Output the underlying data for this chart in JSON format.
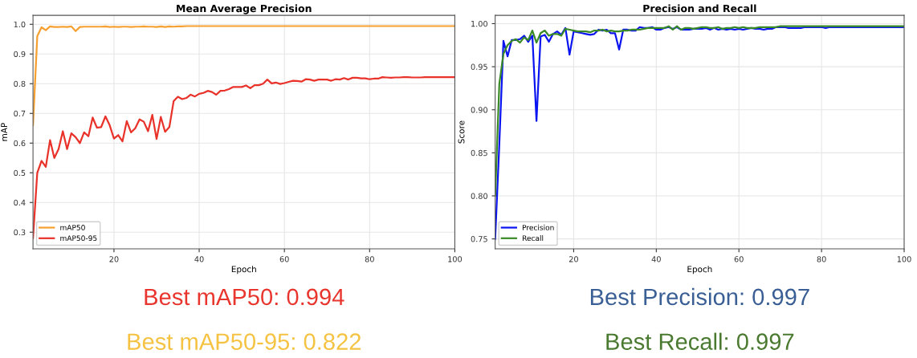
{
  "chart_data": [
    {
      "type": "line",
      "title": "Mean Average Precision",
      "xlabel": "Epoch",
      "ylabel": "mAP",
      "x": [
        1,
        2,
        3,
        4,
        5,
        6,
        7,
        8,
        9,
        10,
        11,
        12,
        13,
        14,
        15,
        16,
        17,
        18,
        19,
        20,
        21,
        22,
        23,
        24,
        25,
        26,
        27,
        28,
        29,
        30,
        31,
        32,
        33,
        34,
        35,
        36,
        37,
        38,
        39,
        40,
        41,
        42,
        43,
        44,
        45,
        46,
        47,
        48,
        49,
        50,
        51,
        52,
        53,
        54,
        55,
        56,
        57,
        58,
        59,
        60,
        61,
        62,
        63,
        64,
        65,
        66,
        67,
        68,
        69,
        70,
        71,
        72,
        73,
        74,
        75,
        76,
        77,
        78,
        79,
        80,
        81,
        82,
        83,
        84,
        85,
        86,
        87,
        88,
        89,
        90,
        91,
        92,
        93,
        94,
        95,
        96,
        97,
        98,
        99,
        100
      ],
      "series": [
        {
          "name": "mAP50",
          "color": "#f5a030",
          "values": [
            0.66,
            0.96,
            0.99,
            0.98,
            0.993,
            0.991,
            0.991,
            0.992,
            0.991,
            0.993,
            0.977,
            0.991,
            0.992,
            0.992,
            0.992,
            0.992,
            0.992,
            0.993,
            0.991,
            0.992,
            0.991,
            0.992,
            0.992,
            0.991,
            0.992,
            0.992,
            0.993,
            0.992,
            0.992,
            0.991,
            0.993,
            0.991,
            0.993,
            0.992,
            0.993,
            0.993,
            0.994,
            0.994,
            0.994,
            0.994,
            0.994,
            0.994,
            0.994,
            0.994,
            0.994,
            0.994,
            0.994,
            0.994,
            0.994,
            0.994,
            0.994,
            0.994,
            0.994,
            0.994,
            0.994,
            0.994,
            0.994,
            0.994,
            0.994,
            0.994,
            0.994,
            0.994,
            0.994,
            0.994,
            0.994,
            0.994,
            0.994,
            0.994,
            0.994,
            0.994,
            0.994,
            0.994,
            0.994,
            0.994,
            0.994,
            0.994,
            0.994,
            0.994,
            0.994,
            0.994,
            0.994,
            0.994,
            0.994,
            0.994,
            0.994,
            0.994,
            0.994,
            0.994,
            0.994,
            0.994,
            0.994,
            0.994,
            0.994,
            0.994,
            0.994,
            0.994,
            0.994,
            0.994,
            0.994,
            0.994
          ]
        },
        {
          "name": "mAP50-95",
          "color": "#e8322a",
          "values": [
            0.28,
            0.5,
            0.54,
            0.52,
            0.61,
            0.55,
            0.58,
            0.64,
            0.58,
            0.633,
            0.62,
            0.6,
            0.636,
            0.623,
            0.686,
            0.652,
            0.654,
            0.69,
            0.66,
            0.615,
            0.627,
            0.606,
            0.674,
            0.636,
            0.65,
            0.68,
            0.672,
            0.64,
            0.695,
            0.614,
            0.688,
            0.638,
            0.654,
            0.741,
            0.756,
            0.748,
            0.752,
            0.763,
            0.757,
            0.766,
            0.769,
            0.776,
            0.772,
            0.763,
            0.776,
            0.777,
            0.782,
            0.789,
            0.789,
            0.789,
            0.794,
            0.785,
            0.795,
            0.795,
            0.8,
            0.814,
            0.801,
            0.804,
            0.799,
            0.802,
            0.806,
            0.81,
            0.809,
            0.807,
            0.815,
            0.814,
            0.81,
            0.814,
            0.814,
            0.814,
            0.81,
            0.815,
            0.814,
            0.819,
            0.814,
            0.82,
            0.82,
            0.818,
            0.818,
            0.815,
            0.817,
            0.817,
            0.822,
            0.821,
            0.82,
            0.821,
            0.821,
            0.822,
            0.822,
            0.821,
            0.821,
            0.821,
            0.822,
            0.822,
            0.822,
            0.822,
            0.822,
            0.822,
            0.822,
            0.822
          ]
        }
      ],
      "xlim": [
        1,
        100
      ],
      "xticks": [
        20,
        40,
        60,
        80,
        100
      ],
      "ylim": [
        0.244,
        1.03
      ],
      "yticks": [
        0.3,
        0.4,
        0.5,
        0.6,
        0.7,
        0.8,
        0.9,
        {
          "value": 1.0,
          "label": "1.0"
        }
      ],
      "grid": true,
      "legend": "bottom left",
      "marker": "none",
      "line_style": "solid",
      "annotations": [
        "Best mAP50: 0.994",
        "Best mAP50-95: 0.822"
      ]
    },
    {
      "type": "line",
      "title": "Precision and Recall",
      "xlabel": "Epoch",
      "ylabel": "Score",
      "x": [
        1,
        2,
        3,
        4,
        5,
        6,
        7,
        8,
        9,
        10,
        11,
        12,
        13,
        14,
        15,
        16,
        17,
        18,
        19,
        20,
        21,
        22,
        23,
        24,
        25,
        26,
        27,
        28,
        29,
        30,
        31,
        32,
        33,
        34,
        35,
        36,
        37,
        38,
        39,
        40,
        41,
        42,
        43,
        44,
        45,
        46,
        47,
        48,
        49,
        50,
        51,
        52,
        53,
        54,
        55,
        56,
        57,
        58,
        59,
        60,
        61,
        62,
        63,
        64,
        65,
        66,
        67,
        68,
        69,
        70,
        71,
        72,
        73,
        74,
        75,
        76,
        77,
        78,
        79,
        80,
        81,
        82,
        83,
        84,
        85,
        86,
        87,
        88,
        89,
        90,
        91,
        92,
        93,
        94,
        95,
        96,
        97,
        98,
        99,
        100
      ],
      "series": [
        {
          "name": "Precision",
          "color": "#0a14f0",
          "values": [
            0.75,
            0.86,
            0.98,
            0.962,
            0.981,
            0.981,
            0.982,
            0.986,
            0.979,
            0.986,
            0.887,
            0.985,
            0.987,
            0.979,
            0.988,
            0.991,
            0.987,
            0.995,
            0.964,
            0.991,
            0.99,
            0.989,
            0.988,
            0.987,
            0.988,
            0.993,
            0.992,
            0.993,
            0.989,
            0.989,
            0.97,
            0.993,
            0.993,
            0.992,
            0.992,
            0.996,
            0.995,
            0.995,
            0.996,
            0.993,
            0.993,
            0.995,
            0.996,
            0.994,
            0.996,
            0.993,
            0.993,
            0.993,
            0.994,
            0.994,
            0.994,
            0.995,
            0.993,
            0.995,
            0.993,
            0.994,
            0.993,
            0.994,
            0.993,
            0.994,
            0.993,
            0.994,
            0.995,
            0.994,
            0.994,
            0.993,
            0.994,
            0.994,
            0.996,
            0.996,
            0.996,
            0.995,
            0.995,
            0.995,
            0.995,
            0.996,
            0.996,
            0.996,
            0.996,
            0.996,
            0.995,
            0.996,
            0.996,
            0.996,
            0.996,
            0.996,
            0.996,
            0.996,
            0.996,
            0.996,
            0.996,
            0.996,
            0.996,
            0.996,
            0.996,
            0.996,
            0.996,
            0.996,
            0.996,
            0.996
          ]
        },
        {
          "name": "Recall",
          "color": "#3a8a28",
          "values": [
            0.8,
            0.93,
            0.965,
            0.975,
            0.98,
            0.982,
            0.978,
            0.984,
            0.981,
            0.992,
            0.978,
            0.989,
            0.992,
            0.986,
            0.988,
            0.988,
            0.986,
            0.994,
            0.993,
            0.992,
            0.991,
            0.991,
            0.991,
            0.99,
            0.992,
            0.992,
            0.993,
            0.991,
            0.992,
            0.991,
            0.991,
            0.992,
            0.992,
            0.993,
            0.993,
            0.993,
            0.994,
            0.995,
            0.995,
            0.995,
            0.995,
            0.995,
            0.997,
            0.993,
            0.997,
            0.993,
            0.995,
            0.995,
            0.994,
            0.995,
            0.996,
            0.996,
            0.995,
            0.995,
            0.996,
            0.994,
            0.995,
            0.995,
            0.996,
            0.995,
            0.996,
            0.995,
            0.995,
            0.995,
            0.996,
            0.996,
            0.996,
            0.996,
            0.996,
            0.997,
            0.997,
            0.997,
            0.997,
            0.997,
            0.997,
            0.997,
            0.997,
            0.997,
            0.997,
            0.997,
            0.997,
            0.997,
            0.997,
            0.997,
            0.997,
            0.997,
            0.997,
            0.997,
            0.997,
            0.997,
            0.997,
            0.997,
            0.997,
            0.997,
            0.997,
            0.997,
            0.997,
            0.997,
            0.997,
            0.997
          ]
        }
      ],
      "xlim": [
        1,
        100
      ],
      "xticks": [
        20,
        40,
        60,
        80,
        100
      ],
      "ylim": [
        0.7385,
        1.0096
      ],
      "yticks": [
        0.75,
        {
          "value": 0.8,
          "label": "0.80"
        },
        0.85,
        {
          "value": 0.9,
          "label": "0.90"
        },
        0.95,
        {
          "value": 1.0,
          "label": "1.00"
        }
      ],
      "grid": true,
      "legend": "bottom left",
      "marker": "none",
      "line_style": "solid",
      "annotations": [
        "Best Precision: 0.997",
        "Best Recall: 0.997"
      ]
    }
  ]
}
